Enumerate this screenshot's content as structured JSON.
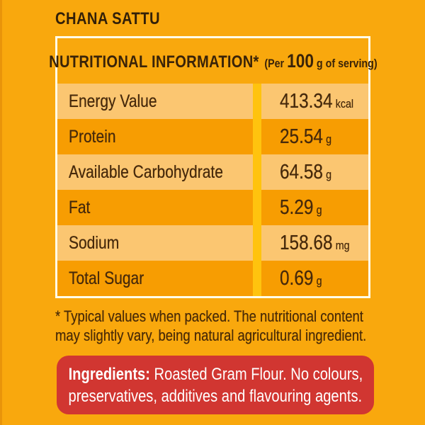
{
  "product": {
    "title": "CHANA SATTU"
  },
  "colors": {
    "background": "#F9A80D",
    "row_dark": "#F79D02",
    "row_light": "#FBC671",
    "column_divider": "#FFC30E",
    "table_border": "#FFFDE9",
    "text_dark": "#46290B",
    "ingredients_box": "#D13631",
    "ingredients_text": "#FFFFFF"
  },
  "nutrition_table": {
    "header": {
      "title": "NUTRITIONAL INFORMATION*",
      "serving_prefix": "(Per",
      "serving_amount": "100",
      "serving_suffix": "g of serving)"
    },
    "rows": [
      {
        "label": "Energy Value",
        "value": "413.34",
        "unit": "kcal"
      },
      {
        "label": "Protein",
        "value": "25.54",
        "unit": "g"
      },
      {
        "label": "Available Carbohydrate",
        "value": "64.58",
        "unit": "g"
      },
      {
        "label": "Fat",
        "value": "5.29",
        "unit": "g"
      },
      {
        "label": "Sodium",
        "value": "158.68",
        "unit": "mg"
      },
      {
        "label": "Total Sugar",
        "value": "0.69",
        "unit": "g"
      }
    ]
  },
  "footnote": {
    "line1": "* Typical values when packed. The nutritional content",
    "line2": "may slightly vary, being natural agricultural ingredient."
  },
  "ingredients": {
    "label": "Ingredients:",
    "line1_rest": " Roasted Gram Flour. No colours,",
    "line2": "preservatives, additives and flavouring agents."
  }
}
